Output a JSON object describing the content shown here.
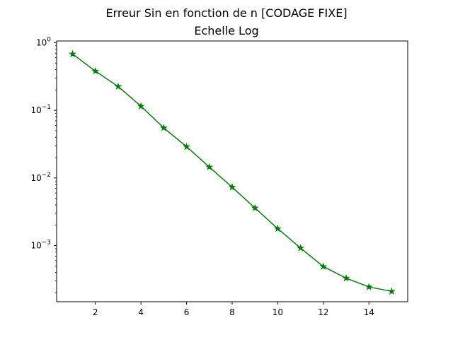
{
  "chart_data": {
    "type": "line",
    "title": "Erreur Sin en fonction de n [CODAGE FIXE]",
    "subtitle": "Echelle Log",
    "xlabel": "",
    "ylabel": "",
    "x": [
      1,
      2,
      3,
      4,
      5,
      6,
      7,
      8,
      9,
      10,
      11,
      12,
      13,
      14,
      15
    ],
    "series": [
      {
        "values": [
          0.68,
          0.38,
          0.225,
          0.115,
          0.055,
          0.029,
          0.0145,
          0.0073,
          0.0036,
          0.00178,
          0.00092,
          0.00049,
          0.00033,
          0.000245,
          0.00021
        ],
        "color": "#008000",
        "marker": "star"
      }
    ],
    "xlim": [
      0.3,
      15.7
    ],
    "ylim": [
      0.000148,
      1.06
    ],
    "yscale": "log",
    "xticks": [
      2,
      4,
      6,
      8,
      10,
      12,
      14
    ],
    "yticks": [
      {
        "value": 1,
        "base": "10",
        "exp": "0"
      },
      {
        "value": 0.1,
        "base": "10",
        "exp": "−1"
      },
      {
        "value": 0.01,
        "base": "10",
        "exp": "−2"
      },
      {
        "value": 0.001,
        "base": "10",
        "exp": "−3"
      }
    ],
    "grid": false,
    "legend": "none"
  }
}
